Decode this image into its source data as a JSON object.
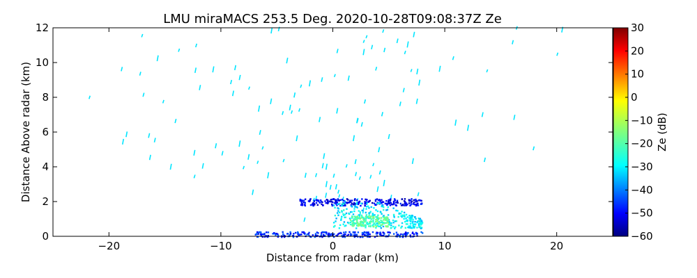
{
  "chart_data": {
    "type": "heatmap",
    "title": "LMU miraMACS 253.5 Deg. 2020-10-28T09:08:37Z  Ze",
    "xlabel": "Distance from radar (km)",
    "ylabel": "Distance Above radar  (km)",
    "xlim": [
      -25,
      25
    ],
    "ylim": [
      0,
      12
    ],
    "xticks": [
      "−20",
      "−10",
      "0",
      "10",
      "20"
    ],
    "yticks": [
      "0",
      "2",
      "4",
      "6",
      "8",
      "10",
      "12"
    ],
    "colorbar": {
      "label": "Ze (dB)",
      "range": [
        -60,
        30
      ],
      "colormap": "jet",
      "ticks": [
        "−60",
        "−50",
        "−40",
        "−30",
        "−20",
        "−10",
        "0",
        "10",
        "20",
        "30"
      ]
    },
    "echo_regions": [
      {
        "x": [
          -7,
          8
        ],
        "y": [
          0,
          0.3
        ],
        "ze": -45
      },
      {
        "x": [
          -3,
          8
        ],
        "y": [
          1.8,
          2.2
        ],
        "ze": -50
      },
      {
        "x": [
          0,
          8
        ],
        "y": [
          0.5,
          2
        ],
        "ze": -28
      },
      {
        "x": [
          1.5,
          5
        ],
        "y": [
          0.6,
          1.2
        ],
        "ze": -18
      }
    ]
  }
}
